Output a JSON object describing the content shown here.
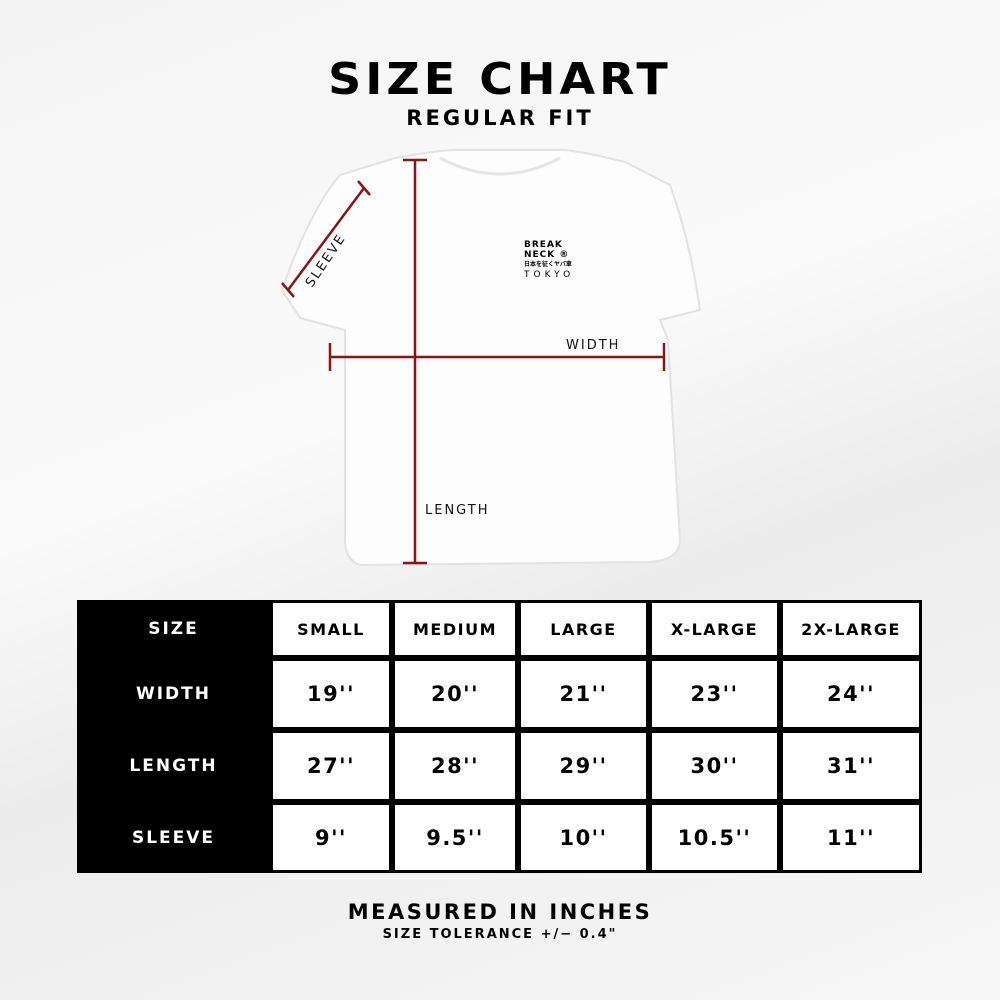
{
  "header": {
    "title": "SIZE CHART",
    "subtitle": "REGULAR FIT"
  },
  "diagram": {
    "labels": {
      "sleeve": "SLEEVE",
      "width": "WIDTH",
      "length": "LENGTH"
    },
    "line_color": "#8b1414",
    "shirt_logo": {
      "line1": "BREAK",
      "line2": "NECK ®",
      "line3": "日本を征くヤバ車",
      "line4": "TOKYO"
    }
  },
  "table": {
    "header_label": "SIZE",
    "sizes": [
      "SMALL",
      "MEDIUM",
      "LARGE",
      "X-LARGE",
      "2X-LARGE"
    ],
    "rows": [
      {
        "label": "WIDTH",
        "values": [
          "19''",
          "20''",
          "21''",
          "23''",
          "24''"
        ]
      },
      {
        "label": "LENGTH",
        "values": [
          "27''",
          "28''",
          "29''",
          "30''",
          "31''"
        ]
      },
      {
        "label": "SLEEVE",
        "values": [
          "9''",
          "9.5''",
          "10''",
          "10.5''",
          "11''"
        ]
      }
    ]
  },
  "footer": {
    "note": "MEASURED IN INCHES",
    "tolerance": "SIZE TOLERANCE +/− 0.4\""
  }
}
